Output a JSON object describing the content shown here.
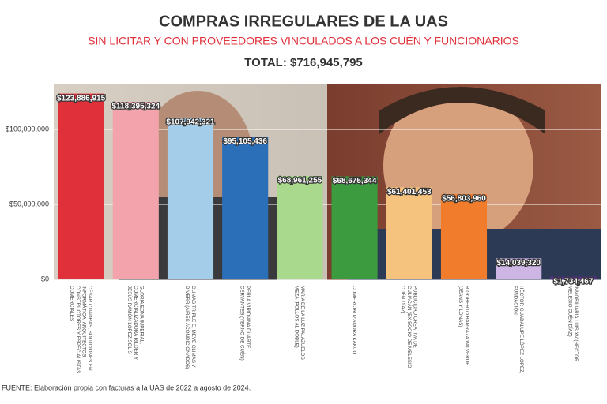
{
  "chart_data": {
    "type": "bar",
    "title": "COMPRAS IRREGULARES DE LA UAS",
    "subtitle": "SIN LICITAR Y CON PROVEEDORES VINCULADOS A LOS CUÉN Y FUNCIONARIOS",
    "total": "TOTAL: $716,945,795",
    "source": "FUENTE: Elaboración propia con facturas a la UAS de 2022 a agosto de 2024.",
    "categories": [
      "CÉSAR CUADRAS, SOLUCIONES EN INFORMÁTICA, ARQUITECTOS CONSTRUCTORES Y ESPECIALISTAS COMERCIALES",
      "GLORIA EDNA IMPERIAL, COMERCIALIZADORA RILDER Y JESÚS RAMÓN LÓPEZ SOLÍS",
      "CLIMAS TRIPLE E, MEVE CLIMAS Y DIVERR (AIRES ACONDICIONADOS)",
      "PERLA VIRIDIANA DUARTE CERVANTES (YERNO DE CUÉN)",
      "MARÍA DE LA LUZ PALAZUELOS MEZA (POLLOS AL DOBLE)",
      "COMERCIALIZADORA KAKUO",
      "PUBLICIDAD CREATIVA DE CULIACÁN (EX SOCIO DE MELESIO CUÉN DÍAZ)",
      "RIGOBERTO BARRAZA VALVERDE (JEANS Y LONAS)",
      "HÉCTOR GUADALUPE LÓPEZ LÓPEZ, FUNDACIÓN",
      "INMOBILIARIA LUIS XV (HÉCTOR MELESIO CUÉN DÍAZ)"
    ],
    "values": [
      123886915,
      118395324,
      107942321,
      95105436,
      68961255,
      68675344,
      61401453,
      56803960,
      14039320,
      1734467
    ],
    "value_labels": [
      "$123,886,915",
      "$118,395,324",
      "$107,942,321",
      "$95,105,436",
      "$68,961,255",
      "$68,675,344",
      "$61,401,453",
      "$56,803,960",
      "$14,039,320",
      "$1,734,467"
    ],
    "colors": [
      "#e0303a",
      "#f2a3ab",
      "#a4cde9",
      "#2b6fb8",
      "#a9d98c",
      "#3c9a3f",
      "#f6c37e",
      "#f07c2c",
      "#cdb6e3",
      "#5b2d8c"
    ],
    "ylim": [
      0,
      130000000
    ],
    "yticks": [
      {
        "value": 0,
        "label": "$0"
      },
      {
        "value": 50000000,
        "label": "$50,000,000"
      },
      {
        "value": 100000000,
        "label": "$100,000,000"
      }
    ],
    "grid": true
  }
}
